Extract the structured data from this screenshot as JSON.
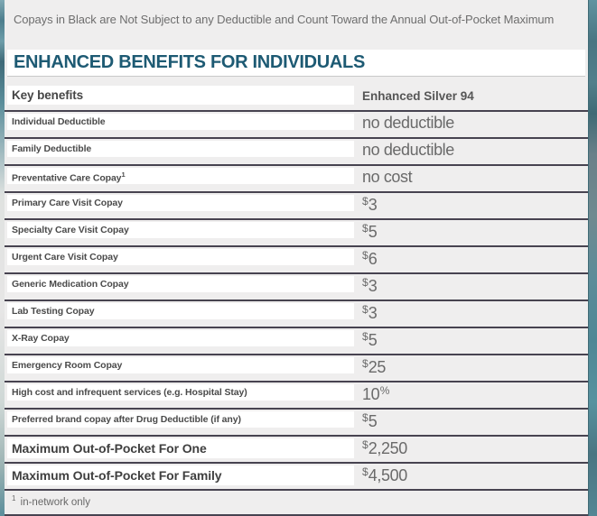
{
  "note": "Copays in Black are Not Subject to any Deductible and Count Toward the Annual Out-of-Pocket Maximum",
  "title": "ENHANCED BENEFITS FOR INDIVIDUALS",
  "table": {
    "header": {
      "key_label": "Key benefits",
      "plan_name": "Enhanced Silver 94"
    },
    "rows": [
      {
        "label": "Individual Deductible",
        "value": "no deductible"
      },
      {
        "label": "Family Deductible",
        "value": "no deductible"
      },
      {
        "label": "Preventative Care Copay",
        "label_sup": "1",
        "value": "no cost"
      },
      {
        "label": "Primary Care Visit Copay",
        "value": "$3"
      },
      {
        "label": "Specialty Care Visit Copay",
        "value": "$5"
      },
      {
        "label": "Urgent Care Visit Copay",
        "value": "$6"
      },
      {
        "label": "Generic Medication Copay",
        "value": "$3"
      },
      {
        "label": "Lab Testing Copay",
        "value": "$3"
      },
      {
        "label": "X-Ray Copay",
        "value": "$5"
      },
      {
        "label": "Emergency Room Copay",
        "value": "$25"
      },
      {
        "label": "High cost and infrequent services (e.g. Hospital Stay)",
        "value": "10%"
      },
      {
        "label": "Preferred brand copay after Drug Deductible (if any)",
        "value": "$5"
      },
      {
        "label": "Maximum Out-of-Pocket For One",
        "value": "$2,250",
        "emphasis": true
      },
      {
        "label": "Maximum Out-of-Pocket For Family",
        "value": "$4,500",
        "emphasis": true
      }
    ],
    "footnote": {
      "sup": "1",
      "text": "in-network only"
    }
  },
  "colors": {
    "card_background": "#efeeee",
    "row_divider": "#474350",
    "title_text": "#1d5a73",
    "label_text": "#4a4a4a",
    "value_text": "#6a6a6a",
    "note_text": "#6e6e6e",
    "teal_edge": "#4f8795",
    "label_box": "#ffffff"
  }
}
